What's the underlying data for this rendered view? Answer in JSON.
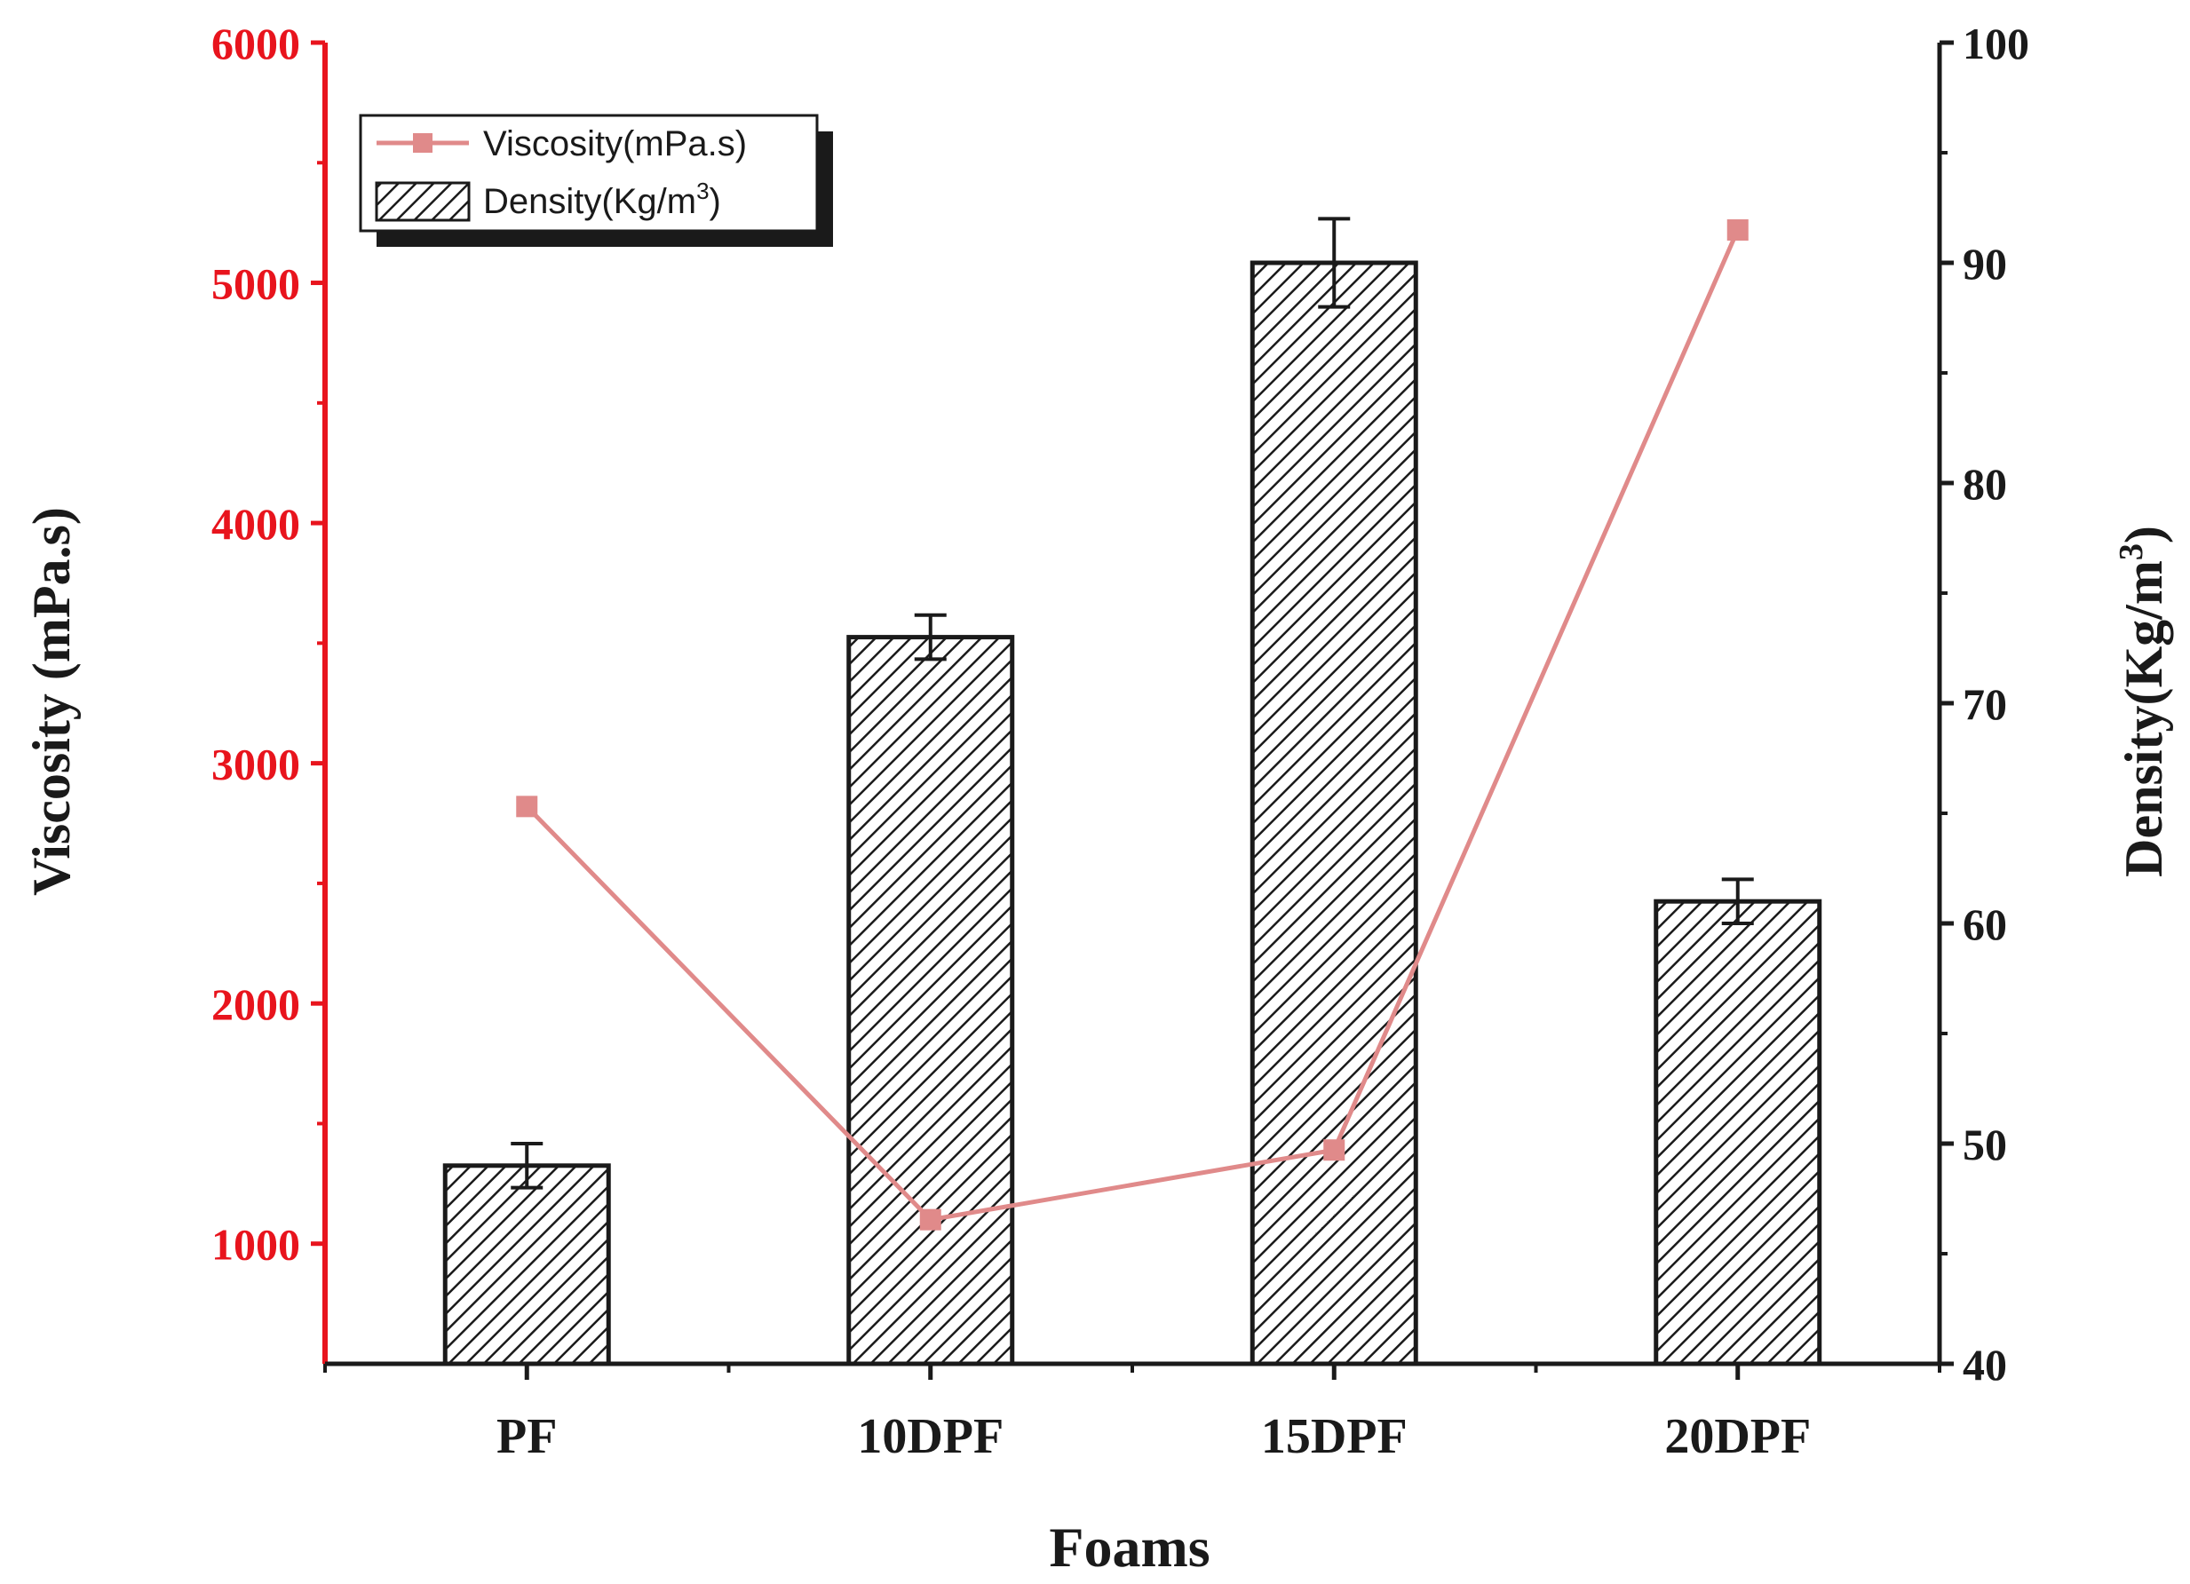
{
  "chart_data": {
    "type": "bar+line",
    "categories": [
      "PF",
      "10DPF",
      "15DPF",
      "20DPF"
    ],
    "xlabel": "Foams",
    "left_axis": {
      "label": "Viscosity (mPa.s)",
      "ylim": [
        500,
        6000
      ],
      "ticks": [
        1000,
        2000,
        3000,
        4000,
        5000,
        6000
      ],
      "color": "#e8141d"
    },
    "right_axis": {
      "label": "Density(Kg/m",
      "label_sup": "3",
      "label_close": ")",
      "ylim": [
        40,
        100
      ],
      "ticks": [
        40,
        50,
        60,
        70,
        80,
        90,
        100
      ]
    },
    "series": [
      {
        "name": "Density(Kg/m",
        "name_sup": "3",
        "name_close": ")",
        "type": "bar",
        "axis": "right",
        "values": [
          49,
          73,
          90,
          61
        ],
        "errors": [
          1.0,
          1.0,
          2.0,
          1.0
        ],
        "pattern": "hatched"
      },
      {
        "name": "Viscosity(mPa.s)",
        "type": "line",
        "axis": "left",
        "values": [
          2820,
          1100,
          1390,
          5220
        ],
        "color": "#e08a8a"
      }
    ],
    "legend_position": "top-left",
    "grid": false
  }
}
